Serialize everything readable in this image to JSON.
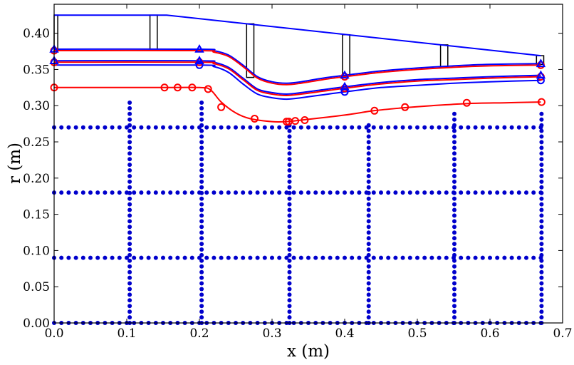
{
  "chart_data": {
    "type": "line",
    "xlabel": "x (m)",
    "ylabel": "r (m)",
    "xlim": [
      0,
      0.7
    ],
    "ylim": [
      0,
      0.44
    ],
    "x_ticks": [
      "0.0",
      "0.1",
      "0.2",
      "0.3",
      "0.4",
      "0.5",
      "0.6",
      "0.7"
    ],
    "y_ticks": [
      "0.00",
      "0.05",
      "0.10",
      "0.15",
      "0.20",
      "0.25",
      "0.30",
      "0.35",
      "0.40"
    ],
    "grid": false,
    "colors": {
      "blue": "#0000ff",
      "red": "#ff0000",
      "dots": "#0000cc",
      "black": "#000000"
    },
    "series": [
      {
        "color": "blue",
        "style": "line",
        "x": [
          0,
          0.155,
          0.67
        ],
        "y": [
          0.425,
          0.425,
          0.369
        ]
      },
      {
        "color": "blue",
        "style": "line",
        "x": [
          0,
          0.2,
          0.22,
          0.24,
          0.26,
          0.28,
          0.3,
          0.32,
          0.34,
          0.37,
          0.4,
          0.45,
          0.5,
          0.55,
          0.6,
          0.67
        ],
        "y": [
          0.378,
          0.378,
          0.376,
          0.37,
          0.356,
          0.34,
          0.333,
          0.331,
          0.333,
          0.338,
          0.342,
          0.348,
          0.352,
          0.355,
          0.357,
          0.358
        ]
      },
      {
        "color": "red",
        "style": "line",
        "x": [
          0,
          0.2,
          0.22,
          0.24,
          0.26,
          0.28,
          0.3,
          0.32,
          0.34,
          0.37,
          0.4,
          0.45,
          0.5,
          0.55,
          0.6,
          0.67
        ],
        "y": [
          0.376,
          0.376,
          0.374,
          0.368,
          0.354,
          0.338,
          0.331,
          0.329,
          0.331,
          0.336,
          0.34,
          0.346,
          0.35,
          0.353,
          0.355,
          0.356
        ]
      },
      {
        "color": "blue",
        "style": "line",
        "x": [
          0,
          0.2,
          0.22,
          0.24,
          0.26,
          0.28,
          0.3,
          0.32,
          0.34,
          0.37,
          0.4,
          0.45,
          0.5,
          0.55,
          0.6,
          0.67
        ],
        "y": [
          0.362,
          0.362,
          0.36,
          0.353,
          0.338,
          0.323,
          0.318,
          0.316,
          0.318,
          0.322,
          0.326,
          0.332,
          0.336,
          0.338,
          0.34,
          0.342
        ]
      },
      {
        "color": "red",
        "style": "line",
        "x": [
          0,
          0.2,
          0.22,
          0.24,
          0.26,
          0.28,
          0.3,
          0.32,
          0.34,
          0.37,
          0.4,
          0.45,
          0.5,
          0.55,
          0.6,
          0.67
        ],
        "y": [
          0.36,
          0.36,
          0.358,
          0.351,
          0.336,
          0.321,
          0.316,
          0.314,
          0.316,
          0.32,
          0.324,
          0.33,
          0.334,
          0.336,
          0.338,
          0.34
        ]
      },
      {
        "color": "blue",
        "style": "line",
        "x": [
          0,
          0.2,
          0.22,
          0.24,
          0.26,
          0.28,
          0.3,
          0.32,
          0.34,
          0.37,
          0.4,
          0.45,
          0.5,
          0.55,
          0.6,
          0.67
        ],
        "y": [
          0.356,
          0.356,
          0.354,
          0.346,
          0.33,
          0.316,
          0.311,
          0.309,
          0.311,
          0.315,
          0.319,
          0.325,
          0.328,
          0.331,
          0.333,
          0.335
        ]
      },
      {
        "color": "red",
        "style": "line",
        "x": [
          0,
          0.15,
          0.2,
          0.215,
          0.23,
          0.25,
          0.27,
          0.3,
          0.32,
          0.34,
          0.4,
          0.44,
          0.48,
          0.52,
          0.57,
          0.62,
          0.67
        ],
        "y": [
          0.325,
          0.325,
          0.325,
          0.322,
          0.305,
          0.29,
          0.282,
          0.278,
          0.278,
          0.28,
          0.287,
          0.293,
          0.297,
          0.3,
          0.303,
          0.304,
          0.305
        ]
      }
    ],
    "red_circle_markers": [
      {
        "x": 0,
        "y": 0.376
      },
      {
        "x": 0.4,
        "y": 0.34
      },
      {
        "x": 0.67,
        "y": 0.356
      },
      {
        "x": 0,
        "y": 0.36
      },
      {
        "x": 0.2,
        "y": 0.36
      },
      {
        "x": 0.4,
        "y": 0.324
      },
      {
        "x": 0.67,
        "y": 0.34
      },
      {
        "x": 0,
        "y": 0.325
      },
      {
        "x": 0.152,
        "y": 0.325
      },
      {
        "x": 0.17,
        "y": 0.325
      },
      {
        "x": 0.19,
        "y": 0.325
      },
      {
        "x": 0.212,
        "y": 0.323
      },
      {
        "x": 0.23,
        "y": 0.298
      },
      {
        "x": 0.276,
        "y": 0.282
      },
      {
        "x": 0.32,
        "y": 0.278
      },
      {
        "x": 0.323,
        "y": 0.278
      },
      {
        "x": 0.332,
        "y": 0.279
      },
      {
        "x": 0.345,
        "y": 0.28
      },
      {
        "x": 0.441,
        "y": 0.293
      },
      {
        "x": 0.483,
        "y": 0.298
      },
      {
        "x": 0.568,
        "y": 0.304
      },
      {
        "x": 0.671,
        "y": 0.305
      }
    ],
    "blue_triangle_markers": [
      {
        "x": 0,
        "y": 0.378
      },
      {
        "x": 0.2,
        "y": 0.378
      },
      {
        "x": 0.4,
        "y": 0.342
      },
      {
        "x": 0.67,
        "y": 0.358
      },
      {
        "x": 0,
        "y": 0.362
      },
      {
        "x": 0.2,
        "y": 0.362
      },
      {
        "x": 0.4,
        "y": 0.326
      },
      {
        "x": 0.67,
        "y": 0.342
      }
    ],
    "blue_circle_markers": [
      {
        "x": 0.2,
        "y": 0.356
      },
      {
        "x": 0.4,
        "y": 0.319
      },
      {
        "x": 0.67,
        "y": 0.335
      }
    ],
    "black_rectangles": [
      {
        "x0": 0,
        "x1": 0.005,
        "y0": 0.376,
        "y1": 0.425
      },
      {
        "x0": 0.132,
        "x1": 0.142,
        "y0": 0.378,
        "y1": 0.425
      },
      {
        "x0": 0.265,
        "x1": 0.275,
        "y0": 0.339,
        "y1": 0.413
      },
      {
        "x0": 0.397,
        "x1": 0.407,
        "y0": 0.341,
        "y1": 0.398
      },
      {
        "x0": 0.532,
        "x1": 0.542,
        "y0": 0.354,
        "y1": 0.384
      },
      {
        "x0": 0.664,
        "x1": 0.674,
        "y0": 0.357,
        "y1": 0.369
      }
    ],
    "dot_grid": {
      "horizontal_rows_y": [
        0,
        0.09,
        0.18,
        0.27
      ],
      "horizontal_x_range": [
        0,
        0.672
      ],
      "horizontal_spacing": 0.01,
      "vertical_cols": [
        {
          "x": 0.104,
          "y_max": 0.31
        },
        {
          "x": 0.203,
          "y_max": 0.31
        },
        {
          "x": 0.324,
          "y_max": 0.278
        },
        {
          "x": 0.433,
          "y_max": 0.28
        },
        {
          "x": 0.551,
          "y_max": 0.29
        },
        {
          "x": 0.671,
          "y_max": 0.29
        }
      ],
      "vertical_spacing": 0.0078
    }
  }
}
